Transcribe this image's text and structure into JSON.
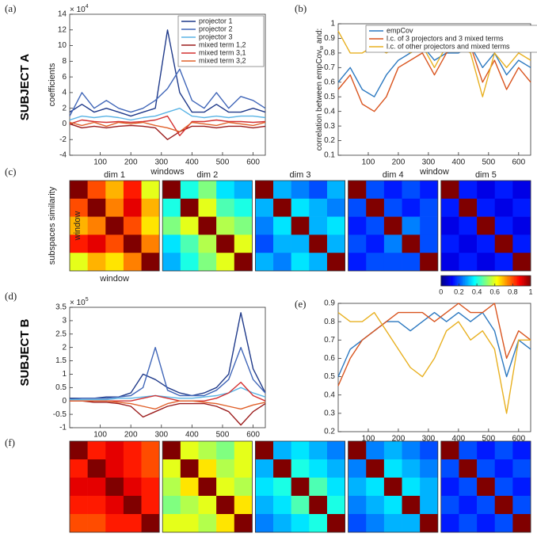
{
  "figure": {
    "subject_a": "SUBJECT A",
    "subject_b": "SUBJECT B"
  },
  "chart_data": [
    {
      "type": "line",
      "panel": "(a)",
      "ylabel": "coefficients",
      "xlabel": "windows",
      "scale_base": "× 10",
      "scale_power": "4",
      "x": [
        0,
        40,
        80,
        120,
        160,
        200,
        240,
        280,
        320,
        360,
        400,
        440,
        480,
        520,
        560,
        600,
        640
      ],
      "xlim": [
        0,
        640
      ],
      "xticks": [
        100,
        200,
        300,
        400,
        500,
        600
      ],
      "ylim": [
        -4,
        14
      ],
      "yticks": [
        -4,
        -2,
        0,
        2,
        4,
        6,
        8,
        10,
        12,
        14
      ],
      "legend": "upper right",
      "series": [
        {
          "name": "projector 1",
          "color": "#1f3a8a",
          "values": [
            1.5,
            2.5,
            1.5,
            2,
            1.5,
            1,
            1.5,
            2,
            12,
            4,
            1.5,
            1.5,
            2.5,
            1.5,
            1.5,
            2,
            1.5
          ]
        },
        {
          "name": "projector 2",
          "color": "#4066b8",
          "values": [
            1,
            4,
            2,
            3,
            2,
            1.5,
            2,
            3,
            4.5,
            7,
            3,
            2,
            4,
            2,
            3.5,
            3,
            2
          ]
        },
        {
          "name": "projector 3",
          "color": "#5ab4e5",
          "values": [
            0.5,
            1,
            0.8,
            1,
            0.8,
            0.5,
            0.8,
            1,
            1.5,
            2,
            1,
            0.8,
            1,
            0.8,
            1,
            1,
            0.8
          ]
        },
        {
          "name": "mixed term 1,2",
          "color": "#9b1c1c",
          "values": [
            0,
            -0.5,
            -0.3,
            -0.5,
            -0.3,
            -0.2,
            -0.3,
            -0.5,
            -2,
            -1,
            -0.3,
            -0.3,
            -0.5,
            -0.3,
            -0.3,
            -0.5,
            -0.3
          ]
        },
        {
          "name": "mixed term 3,1",
          "color": "#d43030",
          "values": [
            0,
            0.5,
            0.3,
            0.2,
            0.3,
            0.2,
            0.3,
            0.5,
            1,
            -1.5,
            0.3,
            0.3,
            0.5,
            0.3,
            0.3,
            0.2,
            0.3
          ]
        },
        {
          "name": "mixed term 3,2",
          "color": "#e0602a",
          "values": [
            0.2,
            -0.2,
            0.2,
            -0.3,
            0.2,
            0,
            0.2,
            -0.2,
            -0.5,
            -1,
            0.2,
            0,
            -0.2,
            0.2,
            0,
            -0.2,
            0.2
          ]
        }
      ]
    },
    {
      "type": "line",
      "panel": "(b)",
      "ylabel_main": "correlation between empCov",
      "ylabel_sub": "w",
      "ylabel_tail": " and:",
      "xlabel": "window",
      "x": [
        0,
        40,
        80,
        120,
        160,
        200,
        240,
        280,
        320,
        360,
        400,
        440,
        480,
        520,
        560,
        600,
        640
      ],
      "xlim": [
        0,
        640
      ],
      "xticks": [
        100,
        200,
        300,
        400,
        500,
        600
      ],
      "ylim": [
        0.1,
        1
      ],
      "yticks": [
        0.1,
        0.2,
        0.3,
        0.4,
        0.5,
        0.6,
        0.7,
        0.8,
        0.9,
        1
      ],
      "legend": "upper left",
      "series": [
        {
          "name": "empCov",
          "color": "#2b78c0",
          "values": [
            0.6,
            0.7,
            0.55,
            0.5,
            0.65,
            0.75,
            0.8,
            0.85,
            0.75,
            0.8,
            0.8,
            0.85,
            0.7,
            0.8,
            0.65,
            0.75,
            0.7
          ]
        },
        {
          "name": "l.c. of 3 projectors and 3 mixed terms",
          "color": "#d9541e",
          "values": [
            0.55,
            0.65,
            0.45,
            0.4,
            0.5,
            0.7,
            0.75,
            0.8,
            0.65,
            0.8,
            0.85,
            0.85,
            0.6,
            0.75,
            0.55,
            0.7,
            0.6
          ]
        },
        {
          "name": "l.c. of other projectors and mixed terms",
          "color": "#e8b020",
          "values": [
            0.95,
            0.8,
            0.8,
            0.85,
            0.8,
            0.85,
            0.8,
            0.85,
            0.7,
            0.85,
            0.85,
            0.8,
            0.5,
            0.8,
            0.7,
            0.8,
            0.75
          ]
        }
      ]
    },
    {
      "type": "heatmap",
      "panel": "(c)",
      "ylabel": "subspaces similarity",
      "clim": [
        0,
        1
      ],
      "cticks": [
        0,
        0.2,
        0.4,
        0.6,
        0.8,
        1
      ],
      "maps": [
        {
          "title": "dim 1",
          "xlabel": "window",
          "ylabel": "window",
          "values": [
            [
              1,
              0.8,
              0.7,
              0.85,
              0.6
            ],
            [
              0.8,
              1,
              0.75,
              0.9,
              0.7
            ],
            [
              0.7,
              0.75,
              1,
              0.8,
              0.65
            ],
            [
              0.85,
              0.9,
              0.8,
              1,
              0.75
            ],
            [
              0.6,
              0.7,
              0.65,
              0.75,
              1
            ]
          ]
        },
        {
          "title": "dim 2",
          "values": [
            [
              1,
              0.4,
              0.5,
              0.35,
              0.3
            ],
            [
              0.4,
              1,
              0.6,
              0.45,
              0.4
            ],
            [
              0.5,
              0.6,
              1,
              0.55,
              0.5
            ],
            [
              0.35,
              0.45,
              0.55,
              1,
              0.6
            ],
            [
              0.3,
              0.4,
              0.5,
              0.6,
              1
            ]
          ]
        },
        {
          "title": "dim 3",
          "values": [
            [
              1,
              0.3,
              0.25,
              0.2,
              0.3
            ],
            [
              0.3,
              1,
              0.35,
              0.3,
              0.25
            ],
            [
              0.25,
              0.35,
              1,
              0.3,
              0.35
            ],
            [
              0.2,
              0.3,
              0.3,
              1,
              0.3
            ],
            [
              0.3,
              0.25,
              0.35,
              0.3,
              1
            ]
          ]
        },
        {
          "title": "dim 4",
          "values": [
            [
              1,
              0.2,
              0.15,
              0.2,
              0.15
            ],
            [
              0.2,
              1,
              0.2,
              0.15,
              0.2
            ],
            [
              0.15,
              0.2,
              1,
              0.25,
              0.2
            ],
            [
              0.2,
              0.15,
              0.25,
              1,
              0.2
            ],
            [
              0.15,
              0.2,
              0.2,
              0.2,
              1
            ]
          ]
        },
        {
          "title": "dim 5",
          "values": [
            [
              1,
              0.15,
              0.1,
              0.15,
              0.1
            ],
            [
              0.15,
              1,
              0.15,
              0.1,
              0.15
            ],
            [
              0.1,
              0.15,
              1,
              0.15,
              0.1
            ],
            [
              0.15,
              0.1,
              0.15,
              1,
              0.15
            ],
            [
              0.1,
              0.15,
              0.1,
              0.15,
              1
            ]
          ]
        }
      ]
    },
    {
      "type": "line",
      "panel": "(d)",
      "scale_base": "× 10",
      "scale_power": "5",
      "x": [
        0,
        40,
        80,
        120,
        160,
        200,
        240,
        280,
        320,
        360,
        400,
        440,
        480,
        520,
        560,
        600,
        640
      ],
      "xlim": [
        0,
        640
      ],
      "xticks": [
        100,
        200,
        300,
        400,
        500,
        600
      ],
      "ylim": [
        -1,
        3.5
      ],
      "yticks": [
        -1,
        -0.5,
        0,
        0.5,
        1,
        1.5,
        2,
        2.5,
        3,
        3.5
      ],
      "series": [
        {
          "color": "#1f3a8a",
          "values": [
            0.1,
            0.1,
            0.1,
            0.15,
            0.15,
            0.3,
            1,
            0.8,
            0.5,
            0.3,
            0.2,
            0.3,
            0.5,
            1,
            3.3,
            1.2,
            0.3
          ]
        },
        {
          "color": "#4066b8",
          "values": [
            0.05,
            0.1,
            0.1,
            0.1,
            0.15,
            0.2,
            0.5,
            2,
            0.4,
            0.2,
            0.2,
            0.2,
            0.4,
            0.8,
            2,
            0.8,
            0.3
          ]
        },
        {
          "color": "#5ab4e5",
          "values": [
            0.05,
            0.05,
            0.05,
            0.05,
            0.1,
            0.1,
            0.15,
            0.2,
            0.15,
            0.1,
            0.1,
            0.15,
            0.2,
            0.3,
            0.5,
            0.3,
            0.15
          ]
        },
        {
          "color": "#9b1c1c",
          "values": [
            0,
            0,
            -0.05,
            -0.05,
            -0.1,
            -0.2,
            -0.6,
            -0.4,
            -0.2,
            -0.1,
            -0.1,
            -0.1,
            -0.2,
            -0.4,
            -0.9,
            -0.4,
            -0.1
          ]
        },
        {
          "color": "#d43030",
          "values": [
            0,
            0,
            0,
            0,
            0,
            0,
            0.1,
            0.2,
            0.1,
            0,
            0,
            0,
            0.1,
            0.3,
            0.7,
            0.2,
            0
          ]
        },
        {
          "color": "#e0602a",
          "values": [
            0,
            0,
            0,
            0,
            -0.05,
            -0.1,
            -0.2,
            -0.3,
            -0.1,
            0,
            0,
            -0.05,
            -0.1,
            -0.2,
            -0.3,
            -0.15,
            -0.05
          ]
        }
      ]
    },
    {
      "type": "line",
      "panel": "(e)",
      "x": [
        0,
        40,
        80,
        120,
        160,
        200,
        240,
        280,
        320,
        360,
        400,
        440,
        480,
        520,
        560,
        600,
        640
      ],
      "xlim": [
        0,
        640
      ],
      "xticks": [
        100,
        200,
        300,
        400,
        500,
        600
      ],
      "ylim": [
        0.2,
        0.9
      ],
      "yticks": [
        0.2,
        0.3,
        0.4,
        0.5,
        0.6,
        0.7,
        0.8,
        0.9
      ],
      "series": [
        {
          "color": "#2b78c0",
          "values": [
            0.5,
            0.65,
            0.7,
            0.75,
            0.8,
            0.8,
            0.75,
            0.8,
            0.85,
            0.8,
            0.85,
            0.8,
            0.85,
            0.75,
            0.5,
            0.7,
            0.65
          ]
        },
        {
          "color": "#d9541e",
          "values": [
            0.45,
            0.6,
            0.7,
            0.75,
            0.8,
            0.85,
            0.85,
            0.85,
            0.8,
            0.85,
            0.9,
            0.85,
            0.85,
            0.9,
            0.6,
            0.75,
            0.7
          ]
        },
        {
          "color": "#e8b020",
          "values": [
            0.85,
            0.8,
            0.8,
            0.85,
            0.75,
            0.65,
            0.55,
            0.5,
            0.6,
            0.75,
            0.8,
            0.7,
            0.75,
            0.65,
            0.3,
            0.7,
            0.7
          ]
        }
      ]
    },
    {
      "type": "heatmap",
      "panel": "(f)",
      "clim": [
        0,
        1
      ],
      "maps": [
        {
          "values": [
            [
              1,
              0.85,
              0.9,
              0.85,
              0.8
            ],
            [
              0.85,
              1,
              0.9,
              0.85,
              0.8
            ],
            [
              0.9,
              0.9,
              1,
              0.9,
              0.85
            ],
            [
              0.85,
              0.85,
              0.9,
              1,
              0.85
            ],
            [
              0.8,
              0.8,
              0.85,
              0.85,
              1
            ]
          ]
        },
        {
          "values": [
            [
              1,
              0.6,
              0.55,
              0.5,
              0.6
            ],
            [
              0.6,
              1,
              0.65,
              0.55,
              0.6
            ],
            [
              0.55,
              0.65,
              1,
              0.6,
              0.55
            ],
            [
              0.5,
              0.55,
              0.6,
              1,
              0.65
            ],
            [
              0.6,
              0.6,
              0.55,
              0.65,
              1
            ]
          ]
        },
        {
          "values": [
            [
              1,
              0.3,
              0.35,
              0.3,
              0.25
            ],
            [
              0.3,
              1,
              0.4,
              0.35,
              0.3
            ],
            [
              0.35,
              0.4,
              1,
              0.45,
              0.35
            ],
            [
              0.3,
              0.35,
              0.45,
              1,
              0.4
            ],
            [
              0.25,
              0.3,
              0.35,
              0.4,
              1
            ]
          ]
        },
        {
          "values": [
            [
              1,
              0.25,
              0.3,
              0.25,
              0.2
            ],
            [
              0.25,
              1,
              0.35,
              0.3,
              0.25
            ],
            [
              0.3,
              0.35,
              1,
              0.35,
              0.3
            ],
            [
              0.25,
              0.3,
              0.35,
              1,
              0.3
            ],
            [
              0.2,
              0.25,
              0.3,
              0.3,
              1
            ]
          ]
        },
        {
          "values": [
            [
              1,
              0.2,
              0.15,
              0.2,
              0.15
            ],
            [
              0.2,
              1,
              0.2,
              0.15,
              0.2
            ],
            [
              0.15,
              0.2,
              1,
              0.2,
              0.15
            ],
            [
              0.2,
              0.15,
              0.2,
              1,
              0.2
            ],
            [
              0.15,
              0.2,
              0.15,
              0.2,
              1
            ]
          ]
        }
      ]
    }
  ]
}
